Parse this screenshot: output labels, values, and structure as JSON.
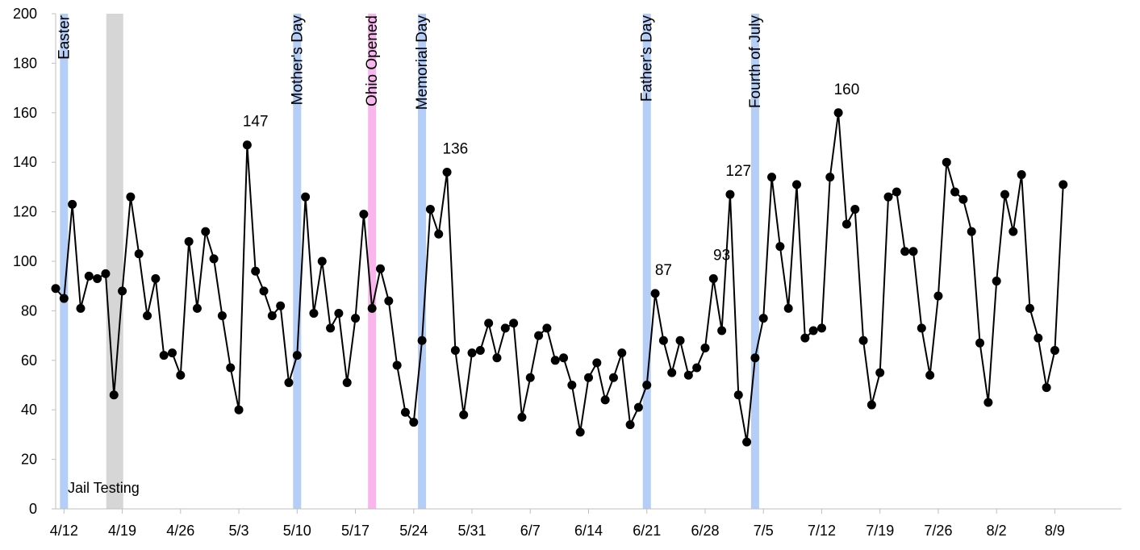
{
  "chart_data": {
    "type": "line",
    "title": "",
    "xlabel": "",
    "ylabel": "",
    "ylim": [
      0,
      200
    ],
    "yticks": [
      0,
      20,
      40,
      60,
      80,
      100,
      120,
      140,
      160,
      180,
      200
    ],
    "x_start": "4/11",
    "xlim_days": [
      0,
      128
    ],
    "xticks": [
      {
        "day": 1,
        "label": "4/12"
      },
      {
        "day": 8,
        "label": "4/19"
      },
      {
        "day": 15,
        "label": "4/26"
      },
      {
        "day": 22,
        "label": "5/3"
      },
      {
        "day": 29,
        "label": "5/10"
      },
      {
        "day": 36,
        "label": "5/17"
      },
      {
        "day": 43,
        "label": "5/24"
      },
      {
        "day": 50,
        "label": "5/31"
      },
      {
        "day": 57,
        "label": "6/7"
      },
      {
        "day": 64,
        "label": "6/14"
      },
      {
        "day": 71,
        "label": "6/21"
      },
      {
        "day": 78,
        "label": "6/28"
      },
      {
        "day": 85,
        "label": "7/5"
      },
      {
        "day": 92,
        "label": "7/12"
      },
      {
        "day": 99,
        "label": "7/19"
      },
      {
        "day": 106,
        "label": "7/26"
      },
      {
        "day": 113,
        "label": "8/2"
      },
      {
        "day": 120,
        "label": "8/9"
      }
    ],
    "grid": false,
    "series": [
      {
        "color": "#000000",
        "values": [
          89,
          85,
          123,
          81,
          94,
          93,
          95,
          46,
          88,
          126,
          103,
          78,
          93,
          62,
          63,
          54,
          108,
          81,
          112,
          101,
          78,
          57,
          40,
          147,
          96,
          88,
          78,
          82,
          51,
          62,
          126,
          79,
          100,
          73,
          79,
          51,
          77,
          119,
          81,
          97,
          84,
          58,
          39,
          35,
          68,
          121,
          111,
          136,
          64,
          38,
          63,
          64,
          75,
          61,
          73,
          75,
          37,
          53,
          70,
          73,
          60,
          61,
          50,
          31,
          53,
          59,
          44,
          53,
          63,
          34,
          41,
          50,
          87,
          68,
          55,
          68,
          54,
          57,
          65,
          93,
          72,
          127,
          46,
          27,
          61,
          77,
          134,
          106,
          81,
          131,
          69,
          72,
          73,
          134,
          160,
          115,
          121,
          68,
          42,
          55,
          126,
          128,
          104,
          104,
          73,
          54,
          86,
          140,
          128,
          125,
          112,
          67,
          43,
          92,
          127,
          112,
          135,
          81,
          69,
          49,
          64,
          131
        ]
      }
    ],
    "bands": [
      {
        "day": 1,
        "color": "#b4cef7",
        "label": "Easter"
      },
      {
        "day": 7,
        "color": "#d6d6d6",
        "label": "Jail Testing"
      },
      {
        "day": 29,
        "color": "#b4cef7",
        "label": "Mother's Day"
      },
      {
        "day": 38,
        "color": "#f9b6ec",
        "label": "Ohio Opened"
      },
      {
        "day": 44,
        "color": "#b4cef7",
        "label": "Memorial Day"
      },
      {
        "day": 71,
        "color": "#b4cef7",
        "label": "Father's Day"
      },
      {
        "day": 84,
        "color": "#b4cef7",
        "label": "Fourth of July"
      }
    ],
    "annotations": [
      {
        "day": 24,
        "value": 147,
        "label": "147"
      },
      {
        "day": 48,
        "value": 136,
        "label": "136"
      },
      {
        "day": 73,
        "value": 87,
        "label": "87"
      },
      {
        "day": 80,
        "value": 93,
        "label": "93"
      },
      {
        "day": 82,
        "value": 127,
        "label": "127"
      },
      {
        "day": 95,
        "value": 160,
        "label": "160"
      }
    ]
  }
}
